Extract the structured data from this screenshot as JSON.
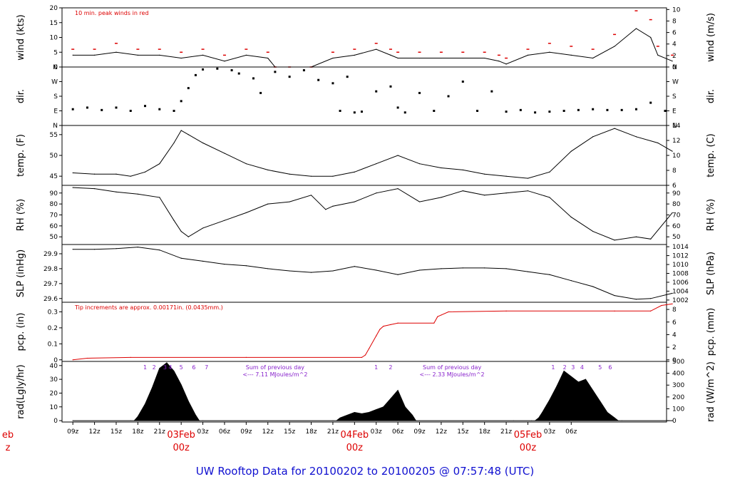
{
  "title": "UW Rooftop Data for 20100202  to  20100205 @ 07:57:48  (UTC)",
  "colors": {
    "data": "#000000",
    "peak": "#dd0000",
    "pcp": "#dd0000",
    "note": "#dd0000",
    "radnote": "#8822cc",
    "title": "#1010d0",
    "date": "#dd0000"
  },
  "chart_data": [
    {
      "id": "wind",
      "type": "line",
      "ylabel_left": "wind (kts)",
      "ylabel_right": "wind (m/s)",
      "ylim": [
        0,
        20
      ],
      "yticks": [
        0,
        5,
        10,
        15,
        20
      ],
      "right_ylim": [
        0,
        10.29
      ],
      "right_yticks": [
        0,
        2,
        4,
        6,
        8,
        10
      ],
      "note": "10 min. peak winds in red",
      "x": [
        0,
        6,
        12,
        18,
        24,
        30,
        36,
        42,
        48,
        54,
        56,
        60,
        66,
        72,
        78,
        84,
        88,
        90,
        96,
        102,
        108,
        114,
        118,
        120,
        126,
        132,
        138,
        144,
        150,
        156,
        160,
        162,
        166
      ],
      "y": [
        4,
        4,
        5,
        4,
        4,
        3,
        4,
        2,
        4,
        3,
        0,
        0,
        0,
        3,
        4,
        6,
        4,
        3,
        3,
        3,
        3,
        3,
        2,
        1,
        4,
        5,
        4,
        3,
        7,
        13,
        10,
        4,
        2
      ],
      "peaks": [
        6,
        6,
        8,
        6,
        6,
        5,
        6,
        4,
        6,
        5,
        0,
        0,
        0,
        5,
        6,
        8,
        6,
        5,
        5,
        5,
        5,
        5,
        4,
        3,
        6,
        8,
        7,
        6,
        11,
        19,
        16,
        7,
        4
      ]
    },
    {
      "id": "dir",
      "type": "scatter",
      "ylabel_left": "dir.",
      "ylabel_right": "dir.",
      "ylim": [
        0,
        360
      ],
      "ytick_values": [
        0,
        90,
        180,
        270,
        360
      ],
      "ytick_labels": [
        "N",
        "E",
        "S",
        "W",
        "N"
      ],
      "x": [
        0,
        4,
        8,
        12,
        16,
        20,
        24,
        28,
        30,
        32,
        34,
        36,
        40,
        44,
        46,
        50,
        52,
        56,
        60,
        64,
        68,
        72,
        74,
        76,
        78,
        80,
        84,
        88,
        90,
        92,
        96,
        100,
        104,
        108,
        112,
        116,
        120,
        124,
        128,
        132,
        136,
        140,
        144,
        148,
        152,
        156,
        160,
        164
      ],
      "y": [
        100,
        110,
        95,
        110,
        90,
        120,
        100,
        90,
        150,
        230,
        310,
        345,
        350,
        340,
        320,
        290,
        200,
        330,
        300,
        340,
        280,
        260,
        90,
        300,
        80,
        85,
        210,
        240,
        110,
        80,
        200,
        90,
        180,
        270,
        90,
        210,
        85,
        95,
        80,
        85,
        90,
        95,
        100,
        95,
        95,
        100,
        140,
        90
      ]
    },
    {
      "id": "temp",
      "type": "line",
      "ylabel_left": "temp. (F)",
      "ylabel_right": "temp. (C)",
      "ylim": [
        42.8,
        57.2
      ],
      "yticks": [
        45,
        50,
        55
      ],
      "right_ylim": [
        6,
        14
      ],
      "right_yticks": [
        6,
        8,
        10,
        12,
        14
      ],
      "x": [
        0,
        6,
        12,
        16,
        20,
        24,
        28,
        30,
        32,
        36,
        42,
        48,
        54,
        60,
        66,
        72,
        78,
        84,
        90,
        96,
        102,
        108,
        114,
        120,
        126,
        132,
        138,
        144,
        150,
        156,
        162,
        166
      ],
      "y": [
        45.8,
        45.5,
        45.5,
        45,
        46,
        48,
        53,
        56,
        55,
        53,
        50.5,
        48,
        46.5,
        45.5,
        45,
        45,
        46,
        48,
        50,
        48,
        47,
        46.5,
        45.5,
        45,
        44.5,
        46,
        51,
        54.5,
        56.5,
        54.5,
        53,
        51
      ]
    },
    {
      "id": "rh",
      "type": "line",
      "ylabel_left": "RH (%)",
      "ylabel_right": "RH (%)",
      "ylim": [
        43,
        97
      ],
      "yticks": [
        50,
        60,
        70,
        80,
        90
      ],
      "right_ylim": [
        43,
        97
      ],
      "right_yticks": [
        50,
        60,
        70,
        80,
        90
      ],
      "x": [
        0,
        6,
        12,
        18,
        24,
        28,
        30,
        32,
        36,
        42,
        48,
        54,
        60,
        66,
        70,
        72,
        78,
        84,
        90,
        96,
        102,
        108,
        114,
        120,
        126,
        132,
        138,
        144,
        150,
        156,
        160,
        166
      ],
      "y": [
        95,
        94,
        91,
        89,
        86,
        65,
        55,
        50,
        58,
        65,
        72,
        80,
        82,
        88,
        75,
        78,
        82,
        90,
        94,
        82,
        86,
        92,
        88,
        90,
        92,
        86,
        68,
        55,
        47,
        50,
        48,
        72
      ]
    },
    {
      "id": "slp",
      "type": "line",
      "ylabel_left": "SLP (inHg)",
      "ylabel_right": "SLP (hPa)",
      "ylim": [
        29.575,
        29.962
      ],
      "yticks": [
        29.6,
        29.7,
        29.8,
        29.9
      ],
      "right_ylim": [
        1001.5,
        1014.5
      ],
      "right_yticks": [
        1002,
        1004,
        1006,
        1008,
        1010,
        1012,
        1014
      ],
      "x": [
        0,
        6,
        12,
        18,
        24,
        30,
        36,
        42,
        48,
        54,
        60,
        66,
        72,
        78,
        84,
        90,
        96,
        102,
        108,
        114,
        120,
        126,
        132,
        138,
        144,
        150,
        156,
        160,
        166
      ],
      "y": [
        29.93,
        29.93,
        29.935,
        29.945,
        29.925,
        29.87,
        29.85,
        29.83,
        29.82,
        29.8,
        29.785,
        29.775,
        29.785,
        29.815,
        29.79,
        29.76,
        29.79,
        29.8,
        29.805,
        29.805,
        29.8,
        29.78,
        29.76,
        29.72,
        29.68,
        29.62,
        29.595,
        29.6,
        29.635
      ]
    },
    {
      "id": "pcp",
      "type": "line",
      "ylabel_left": "pcp. (in)",
      "ylabel_right": "pcp. (mm)",
      "ylim": [
        -0.01,
        0.36
      ],
      "yticks": [
        0,
        0.1,
        0.2,
        0.3
      ],
      "right_ylim": [
        -0.25,
        9.14
      ],
      "right_yticks": [
        0,
        2,
        4,
        6,
        8
      ],
      "note": "Tip increments are approx. 0.00171in. (0.0435mm.)",
      "x": [
        0,
        4,
        16,
        48,
        80,
        81,
        82,
        84,
        85,
        86,
        88,
        90,
        100,
        101,
        102,
        104,
        120,
        150,
        160,
        163,
        166
      ],
      "y": [
        0,
        0.01,
        0.015,
        0.015,
        0.015,
        0.03,
        0.07,
        0.15,
        0.19,
        0.21,
        0.22,
        0.23,
        0.23,
        0.27,
        0.28,
        0.3,
        0.305,
        0.305,
        0.305,
        0.34,
        0.35
      ]
    },
    {
      "id": "rad",
      "type": "area",
      "ylabel_left": "rad(Lgly/hr)",
      "ylabel_right": "rad (W/m^2)",
      "ylim": [
        -1,
        43
      ],
      "yticks": [
        0,
        10,
        20,
        30,
        40
      ],
      "right_ylim": [
        -11.6,
        500
      ],
      "right_yticks": [
        0,
        100,
        200,
        300,
        400,
        500
      ],
      "x": [
        0,
        16,
        17,
        18,
        20,
        22,
        24,
        26,
        28,
        30,
        32,
        34,
        35,
        36,
        72,
        73,
        74,
        76,
        78,
        80,
        82,
        84,
        86,
        88,
        90,
        92,
        94,
        95,
        96,
        122,
        127,
        128,
        129,
        130,
        132,
        134,
        136,
        138,
        140,
        142,
        144,
        146,
        148,
        150,
        151,
        152,
        166
      ],
      "y": [
        0,
        0,
        0,
        3,
        12,
        24,
        38,
        42,
        36,
        26,
        14,
        4,
        0,
        0,
        0,
        0,
        2,
        4,
        6,
        5,
        6,
        8,
        10,
        16,
        22,
        10,
        4,
        0,
        0,
        0,
        0,
        0,
        2,
        6,
        15,
        25,
        36,
        32,
        28,
        30,
        22,
        14,
        6,
        2,
        0,
        0,
        0
      ],
      "hour_markers": [
        {
          "x": 20,
          "label": "1"
        },
        {
          "x": 22.5,
          "label": "2"
        },
        {
          "x": 25.5,
          "label": "3"
        },
        {
          "x": 27,
          "label": "4"
        },
        {
          "x": 30,
          "label": "5"
        },
        {
          "x": 33.5,
          "label": "6"
        },
        {
          "x": 37,
          "label": "7"
        },
        {
          "x": 84,
          "label": "1"
        },
        {
          "x": 88,
          "label": "2"
        },
        {
          "x": 133,
          "label": "1"
        },
        {
          "x": 136.2,
          "label": "2"
        },
        {
          "x": 138.5,
          "label": "3"
        },
        {
          "x": 141,
          "label": "4"
        },
        {
          "x": 146,
          "label": "5"
        },
        {
          "x": 148.8,
          "label": "6"
        }
      ],
      "notes": [
        {
          "x": 56,
          "line1": "Sum of previous day",
          "line2": "<--- 7.11 MJoules/m^2"
        },
        {
          "x": 105,
          "line1": "Sum of previous day",
          "line2": "<--- 2.33 MJoules/m^2"
        }
      ]
    }
  ],
  "x_axis": {
    "range": [
      -3,
      164.4
    ],
    "ticks": [
      {
        "x": 0,
        "label": "09z"
      },
      {
        "x": 6,
        "label": "12z"
      },
      {
        "x": 12,
        "label": "15z"
      },
      {
        "x": 18,
        "label": "18z"
      },
      {
        "x": 24,
        "label": "21z"
      },
      {
        "x": 30,
        "label": ""
      },
      {
        "x": 36,
        "label": "03z"
      },
      {
        "x": 42,
        "label": "06z"
      },
      {
        "x": 48,
        "label": "09z"
      },
      {
        "x": 54,
        "label": "12z"
      },
      {
        "x": 60,
        "label": "15z"
      },
      {
        "x": 66,
        "label": "18z"
      },
      {
        "x": 72,
        "label": "21z"
      },
      {
        "x": 78,
        "label": ""
      },
      {
        "x": 84,
        "label": "03z"
      },
      {
        "x": 90,
        "label": "06z"
      },
      {
        "x": 96,
        "label": "09z"
      },
      {
        "x": 102,
        "label": "12z"
      },
      {
        "x": 108,
        "label": "15z"
      },
      {
        "x": 114,
        "label": "18z"
      },
      {
        "x": 120,
        "label": "21z"
      },
      {
        "x": 126,
        "label": ""
      },
      {
        "x": 132,
        "label": "03z"
      },
      {
        "x": 138,
        "label": "06z"
      }
    ],
    "dates": [
      {
        "x": -18,
        "line1": "eb",
        "line2": "z"
      },
      {
        "x": 30,
        "line1": "03Feb",
        "line2": "00z"
      },
      {
        "x": 78,
        "line1": "04Feb",
        "line2": "00z"
      },
      {
        "x": 126,
        "line1": "05Feb",
        "line2": "00z"
      }
    ]
  }
}
